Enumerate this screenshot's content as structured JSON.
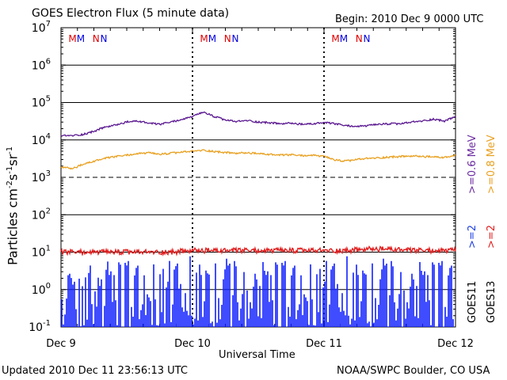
{
  "header": {
    "title": "GOES Electron Flux (5 minute data)",
    "begin": "Begin: 2010 Dec 9 0000 UTC"
  },
  "footer": {
    "updated": "Updated 2010 Dec 11 23:56:13 UTC",
    "credit": "NOAA/SWPC Boulder, CO USA"
  },
  "chart_data": {
    "type": "line",
    "title": "GOES Electron Flux (5 minute data)",
    "xlabel": "Universal Time",
    "ylabel": "Particles cm-2s-1sr-1",
    "yscale": "log",
    "ylim": [
      0.1,
      10000000
    ],
    "xlim": [
      0,
      72
    ],
    "x_unit": "hours since 2010 Dec 9 0000 UTC",
    "x_tick_labels": [
      "Dec 9",
      "Dec 10",
      "Dec 11",
      "Dec 12"
    ],
    "y_tick_labels": [
      "10^-1",
      "10^0",
      "10^1",
      "10^2",
      "10^3",
      "10^4",
      "10^5",
      "10^6",
      "10^7"
    ],
    "grid": true,
    "mn_markers": [
      {
        "label": "M",
        "x": 2.1,
        "color": "#e00000"
      },
      {
        "label": "M",
        "x": 3.6,
        "color": "#0000e0"
      },
      {
        "label": "N",
        "x": 6.4,
        "color": "#e00000"
      },
      {
        "label": "N",
        "x": 7.8,
        "color": "#0000e0"
      },
      {
        "label": "M",
        "x": 26.1,
        "color": "#e00000"
      },
      {
        "label": "M",
        "x": 27.6,
        "color": "#0000e0"
      },
      {
        "label": "N",
        "x": 30.4,
        "color": "#e00000"
      },
      {
        "label": "N",
        "x": 31.8,
        "color": "#0000e0"
      },
      {
        "label": "M",
        "x": 50.1,
        "color": "#e00000"
      },
      {
        "label": "M",
        "x": 51.6,
        "color": "#0000e0"
      },
      {
        "label": "N",
        "x": 54.4,
        "color": "#e00000"
      },
      {
        "label": "N",
        "x": 55.8,
        "color": "#0000e0"
      }
    ],
    "legend": [
      {
        "satellite": "GOES11",
        "label": ">=2",
        "color": "#2040e0"
      },
      {
        "satellite": "GOES11",
        "label": ">=0.6 MeV",
        "color": "#6a2aa0"
      },
      {
        "satellite": "GOES13",
        "label": ">=2",
        "color": "#e02020"
      },
      {
        "satellite": "GOES13",
        "label": ">=0.8 MeV",
        "color": "#e8a020"
      }
    ],
    "series": [
      {
        "name": "GOES11 >=0.6 MeV",
        "color": "#5a1890",
        "x": [
          0,
          2,
          4,
          6,
          8,
          10,
          12,
          14,
          16,
          18,
          20,
          22,
          24,
          26,
          28,
          30,
          32,
          34,
          36,
          38,
          40,
          42,
          44,
          46,
          48,
          50,
          52,
          54,
          56,
          58,
          60,
          62,
          64,
          66,
          68,
          70,
          72
        ],
        "values": [
          13000,
          13000,
          14000,
          17000,
          22000,
          25000,
          30000,
          32000,
          28000,
          26000,
          30000,
          35000,
          42000,
          55000,
          42000,
          34000,
          31000,
          33000,
          30000,
          29000,
          27000,
          28000,
          26000,
          27000,
          29000,
          27000,
          24000,
          23000,
          24000,
          26000,
          27000,
          27000,
          30000,
          32000,
          36000,
          32000,
          42000
        ]
      },
      {
        "name": "GOES13 >=0.8 MeV",
        "color": "#e8a020",
        "x": [
          0,
          2,
          4,
          6,
          8,
          10,
          12,
          14,
          16,
          18,
          20,
          22,
          24,
          26,
          28,
          30,
          32,
          34,
          36,
          38,
          40,
          42,
          44,
          46,
          48,
          50,
          52,
          54,
          56,
          58,
          60,
          62,
          64,
          66,
          68,
          70,
          72
        ],
        "values": [
          1900,
          1700,
          2200,
          2700,
          3200,
          3600,
          3900,
          4300,
          4500,
          4100,
          4400,
          4700,
          5000,
          5300,
          4900,
          4600,
          4400,
          4500,
          4300,
          4100,
          3900,
          4000,
          3800,
          3900,
          3600,
          2900,
          2700,
          3000,
          3200,
          3300,
          3500,
          3600,
          3700,
          3600,
          3500,
          3400,
          3800
        ]
      },
      {
        "name": "GOES13 >=2 MeV",
        "color": "#e02020",
        "x": [
          0,
          4,
          8,
          12,
          16,
          20,
          24,
          28,
          32,
          36,
          40,
          44,
          48,
          52,
          56,
          60,
          64,
          68,
          72
        ],
        "values": [
          10,
          10,
          10,
          10,
          10,
          10,
          11,
          11,
          11,
          11,
          11,
          11,
          11,
          11,
          12,
          12,
          11,
          11,
          11
        ]
      },
      {
        "name": "GOES11 >=2 MeV",
        "color": "#1020ff",
        "x": [
          0,
          72
        ],
        "values": [
          0.1,
          8
        ]
      }
    ]
  }
}
